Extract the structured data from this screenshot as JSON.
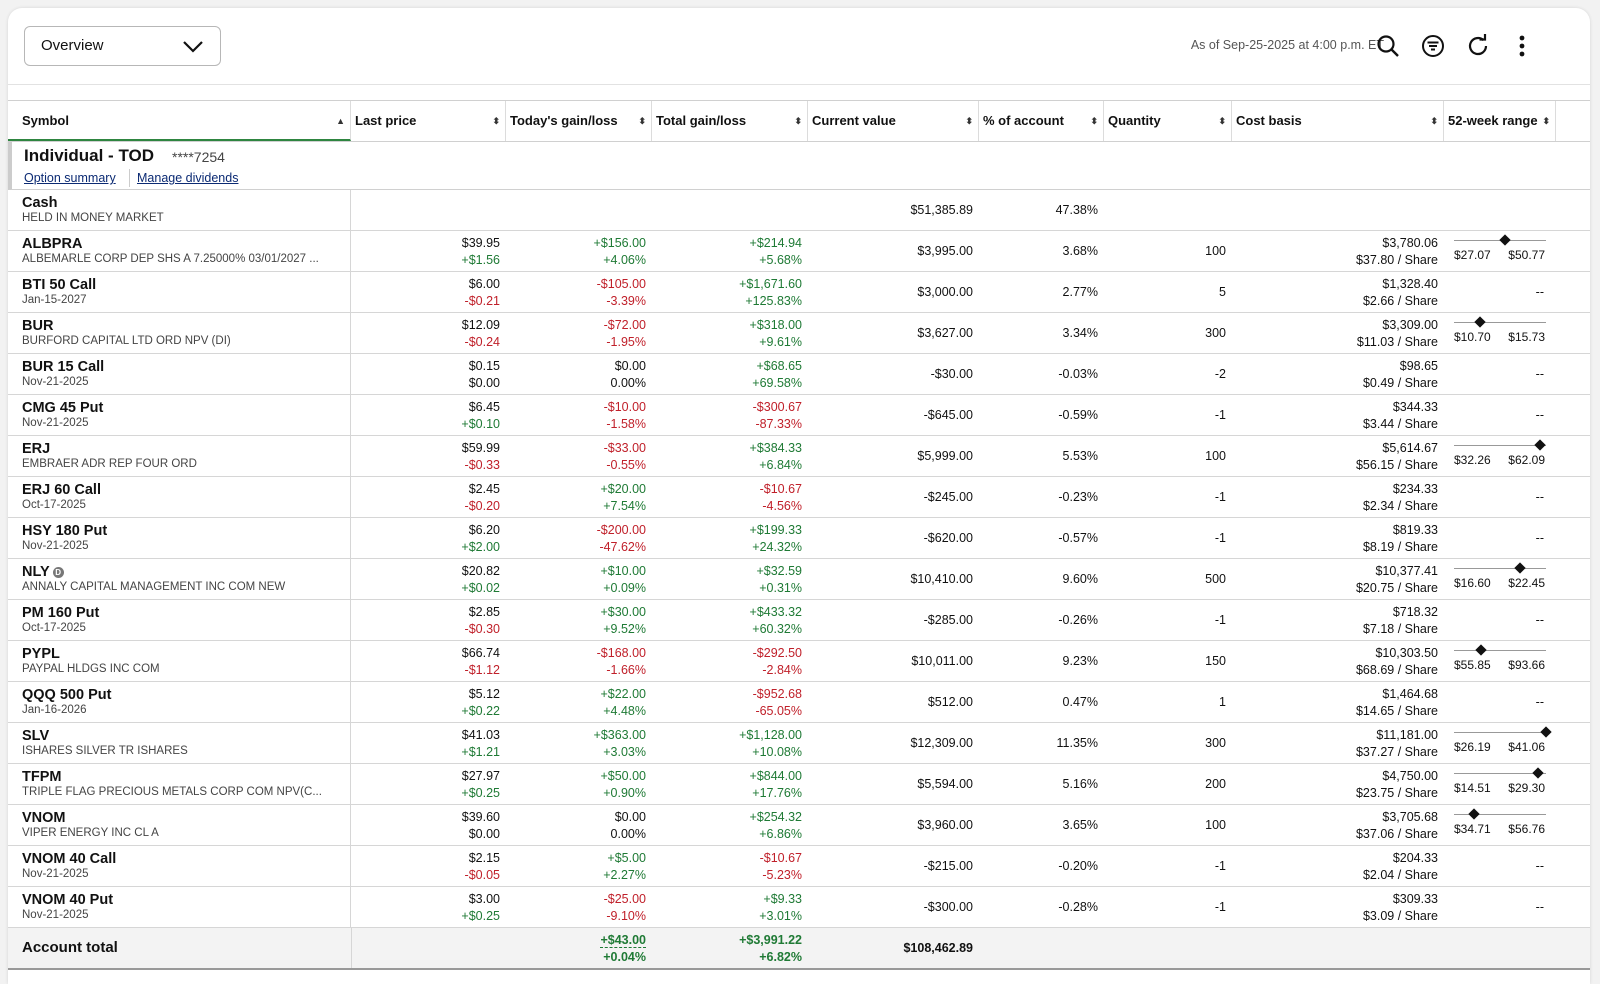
{
  "header": {
    "view_select": "Overview",
    "as_of": "As of Sep-25-2025 at 4:00 p.m. ET"
  },
  "columns": [
    "Symbol",
    "Last price",
    "Today's gain/loss",
    "Total gain/loss",
    "Current value",
    "% of account",
    "Quantity",
    "Cost basis",
    "52-week range"
  ],
  "account": {
    "name": "Individual - TOD",
    "number": "****7254",
    "link_option": "Option summary",
    "link_dividends": "Manage dividends"
  },
  "cash": {
    "symbol": "Cash",
    "desc": "HELD IN MONEY MARKET",
    "value": "$51,385.89",
    "pct": "47.38%"
  },
  "positions": [
    {
      "symbol": "ALBPRA",
      "desc": "ALBEMARLE CORP DEP SHS A 7.25000% 03/01/2027 ...",
      "last": "$39.95",
      "last_chg": "+$1.56",
      "today": "+$156.00",
      "today_pct": "+4.06%",
      "total": "+$214.94",
      "total_pct": "+5.68%",
      "value": "$3,995.00",
      "pct": "3.68%",
      "qty": "100",
      "cost": "$3,780.06",
      "cost_share": "$37.80 / Share",
      "range_lo": "$27.07",
      "range_hi": "$50.77",
      "range_pos": 0.55
    },
    {
      "symbol": "BTI 50 Call",
      "desc": "Jan-15-2027",
      "last": "$6.00",
      "last_chg": "-$0.21",
      "today": "-$105.00",
      "today_pct": "-3.39%",
      "total": "+$1,671.60",
      "total_pct": "+125.83%",
      "value": "$3,000.00",
      "pct": "2.77%",
      "qty": "5",
      "cost": "$1,328.40",
      "cost_share": "$2.66 / Share",
      "range_dash": "--"
    },
    {
      "symbol": "BUR",
      "desc": "BURFORD CAPITAL LTD ORD NPV (DI)",
      "last": "$12.09",
      "last_chg": "-$0.24",
      "today": "-$72.00",
      "today_pct": "-1.95%",
      "total": "+$318.00",
      "total_pct": "+9.61%",
      "value": "$3,627.00",
      "pct": "3.34%",
      "qty": "300",
      "cost": "$3,309.00",
      "cost_share": "$11.03 / Share",
      "range_lo": "$10.70",
      "range_hi": "$15.73",
      "range_pos": 0.28
    },
    {
      "symbol": "BUR 15 Call",
      "desc": "Nov-21-2025",
      "last": "$0.15",
      "last_chg": "$0.00",
      "today": "$0.00",
      "today_pct": "0.00%",
      "total": "+$68.65",
      "total_pct": "+69.58%",
      "value": "-$30.00",
      "pct": "-0.03%",
      "qty": "-2",
      "cost": "$98.65",
      "cost_share": "$0.49 / Share",
      "range_dash": "--"
    },
    {
      "symbol": "CMG 45 Put",
      "desc": "Nov-21-2025",
      "last": "$6.45",
      "last_chg": "+$0.10",
      "today": "-$10.00",
      "today_pct": "-1.58%",
      "total": "-$300.67",
      "total_pct": "-87.33%",
      "value": "-$645.00",
      "pct": "-0.59%",
      "qty": "-1",
      "cost": "$344.33",
      "cost_share": "$3.44 / Share",
      "range_dash": "--"
    },
    {
      "symbol": "ERJ",
      "desc": "EMBRAER ADR REP FOUR ORD",
      "last": "$59.99",
      "last_chg": "-$0.33",
      "today": "-$33.00",
      "today_pct": "-0.55%",
      "total": "+$384.33",
      "total_pct": "+6.84%",
      "value": "$5,999.00",
      "pct": "5.53%",
      "qty": "100",
      "cost": "$5,614.67",
      "cost_share": "$56.15 / Share",
      "range_lo": "$32.26",
      "range_hi": "$62.09",
      "range_pos": 0.93
    },
    {
      "symbol": "ERJ 60 Call",
      "desc": "Oct-17-2025",
      "last": "$2.45",
      "last_chg": "-$0.20",
      "today": "+$20.00",
      "today_pct": "+7.54%",
      "total": "-$10.67",
      "total_pct": "-4.56%",
      "value": "-$245.00",
      "pct": "-0.23%",
      "qty": "-1",
      "cost": "$234.33",
      "cost_share": "$2.34 / Share",
      "range_dash": "--"
    },
    {
      "symbol": "HSY 180 Put",
      "desc": "Nov-21-2025",
      "last": "$6.20",
      "last_chg": "+$2.00",
      "today": "-$200.00",
      "today_pct": "-47.62%",
      "total": "+$199.33",
      "total_pct": "+24.32%",
      "value": "-$620.00",
      "pct": "-0.57%",
      "qty": "-1",
      "cost": "$819.33",
      "cost_share": "$8.19 / Share",
      "range_dash": "--"
    },
    {
      "symbol": "NLY",
      "badge": "D",
      "desc": "ANNALY CAPITAL MANAGEMENT INC COM NEW",
      "last": "$20.82",
      "last_chg": "+$0.02",
      "today": "+$10.00",
      "today_pct": "+0.09%",
      "total": "+$32.59",
      "total_pct": "+0.31%",
      "value": "$10,410.00",
      "pct": "9.60%",
      "qty": "500",
      "cost": "$10,377.41",
      "cost_share": "$20.75 / Share",
      "range_lo": "$16.60",
      "range_hi": "$22.45",
      "range_pos": 0.72
    },
    {
      "symbol": "PM 160 Put",
      "desc": "Oct-17-2025",
      "last": "$2.85",
      "last_chg": "-$0.30",
      "today": "+$30.00",
      "today_pct": "+9.52%",
      "total": "+$433.32",
      "total_pct": "+60.32%",
      "value": "-$285.00",
      "pct": "-0.26%",
      "qty": "-1",
      "cost": "$718.32",
      "cost_share": "$7.18 / Share",
      "range_dash": "--"
    },
    {
      "symbol": "PYPL",
      "desc": "PAYPAL HLDGS INC COM",
      "last": "$66.74",
      "last_chg": "-$1.12",
      "today": "-$168.00",
      "today_pct": "-1.66%",
      "total": "-$292.50",
      "total_pct": "-2.84%",
      "value": "$10,011.00",
      "pct": "9.23%",
      "qty": "150",
      "cost": "$10,303.50",
      "cost_share": "$68.69 / Share",
      "range_lo": "$55.85",
      "range_hi": "$93.66",
      "range_pos": 0.29
    },
    {
      "symbol": "QQQ 500 Put",
      "desc": "Jan-16-2026",
      "last": "$5.12",
      "last_chg": "+$0.22",
      "today": "+$22.00",
      "today_pct": "+4.48%",
      "total": "-$952.68",
      "total_pct": "-65.05%",
      "value": "$512.00",
      "pct": "0.47%",
      "qty": "1",
      "cost": "$1,464.68",
      "cost_share": "$14.65 / Share",
      "range_dash": "--"
    },
    {
      "symbol": "SLV",
      "desc": "ISHARES SILVER TR ISHARES",
      "last": "$41.03",
      "last_chg": "+$1.21",
      "today": "+$363.00",
      "today_pct": "+3.03%",
      "total": "+$1,128.00",
      "total_pct": "+10.08%",
      "value": "$12,309.00",
      "pct": "11.35%",
      "qty": "300",
      "cost": "$11,181.00",
      "cost_share": "$37.27 / Share",
      "range_lo": "$26.19",
      "range_hi": "$41.06",
      "range_pos": 1.0
    },
    {
      "symbol": "TFPM",
      "desc": "TRIPLE FLAG PRECIOUS METALS CORP COM NPV(C...",
      "last": "$27.97",
      "last_chg": "+$0.25",
      "today": "+$50.00",
      "today_pct": "+0.90%",
      "total": "+$844.00",
      "total_pct": "+17.76%",
      "value": "$5,594.00",
      "pct": "5.16%",
      "qty": "200",
      "cost": "$4,750.00",
      "cost_share": "$23.75 / Share",
      "range_lo": "$14.51",
      "range_hi": "$29.30",
      "range_pos": 0.91
    },
    {
      "symbol": "VNOM",
      "desc": "VIPER ENERGY INC CL A",
      "last": "$39.60",
      "last_chg": "$0.00",
      "today": "$0.00",
      "today_pct": "0.00%",
      "total": "+$254.32",
      "total_pct": "+6.86%",
      "value": "$3,960.00",
      "pct": "3.65%",
      "qty": "100",
      "cost": "$3,705.68",
      "cost_share": "$37.06 / Share",
      "range_lo": "$34.71",
      "range_hi": "$56.76",
      "range_pos": 0.22
    },
    {
      "symbol": "VNOM 40 Call",
      "desc": "Nov-21-2025",
      "last": "$2.15",
      "last_chg": "-$0.05",
      "today": "+$5.00",
      "today_pct": "+2.27%",
      "total": "-$10.67",
      "total_pct": "-5.23%",
      "value": "-$215.00",
      "pct": "-0.20%",
      "qty": "-1",
      "cost": "$204.33",
      "cost_share": "$2.04 / Share",
      "range_dash": "--"
    },
    {
      "symbol": "VNOM 40 Put",
      "desc": "Nov-21-2025",
      "last": "$3.00",
      "last_chg": "+$0.25",
      "today": "-$25.00",
      "today_pct": "-9.10%",
      "total": "+$9.33",
      "total_pct": "+3.01%",
      "value": "-$300.00",
      "pct": "-0.28%",
      "qty": "-1",
      "cost": "$309.33",
      "cost_share": "$3.09 / Share",
      "range_dash": "--"
    }
  ],
  "total": {
    "label": "Account total",
    "today": "+$43.00",
    "today_pct": "+0.04%",
    "total": "+$3,991.22",
    "total_pct": "+6.82%",
    "value": "$108,462.89"
  },
  "colors": {
    "positive": "#1f7a35",
    "negative": "#c0202a",
    "accent": "#2e8540"
  },
  "icons": [
    "search-icon",
    "filter-icon",
    "refresh-icon",
    "more-vertical-icon",
    "chevron-down-icon",
    "sort-icon"
  ]
}
